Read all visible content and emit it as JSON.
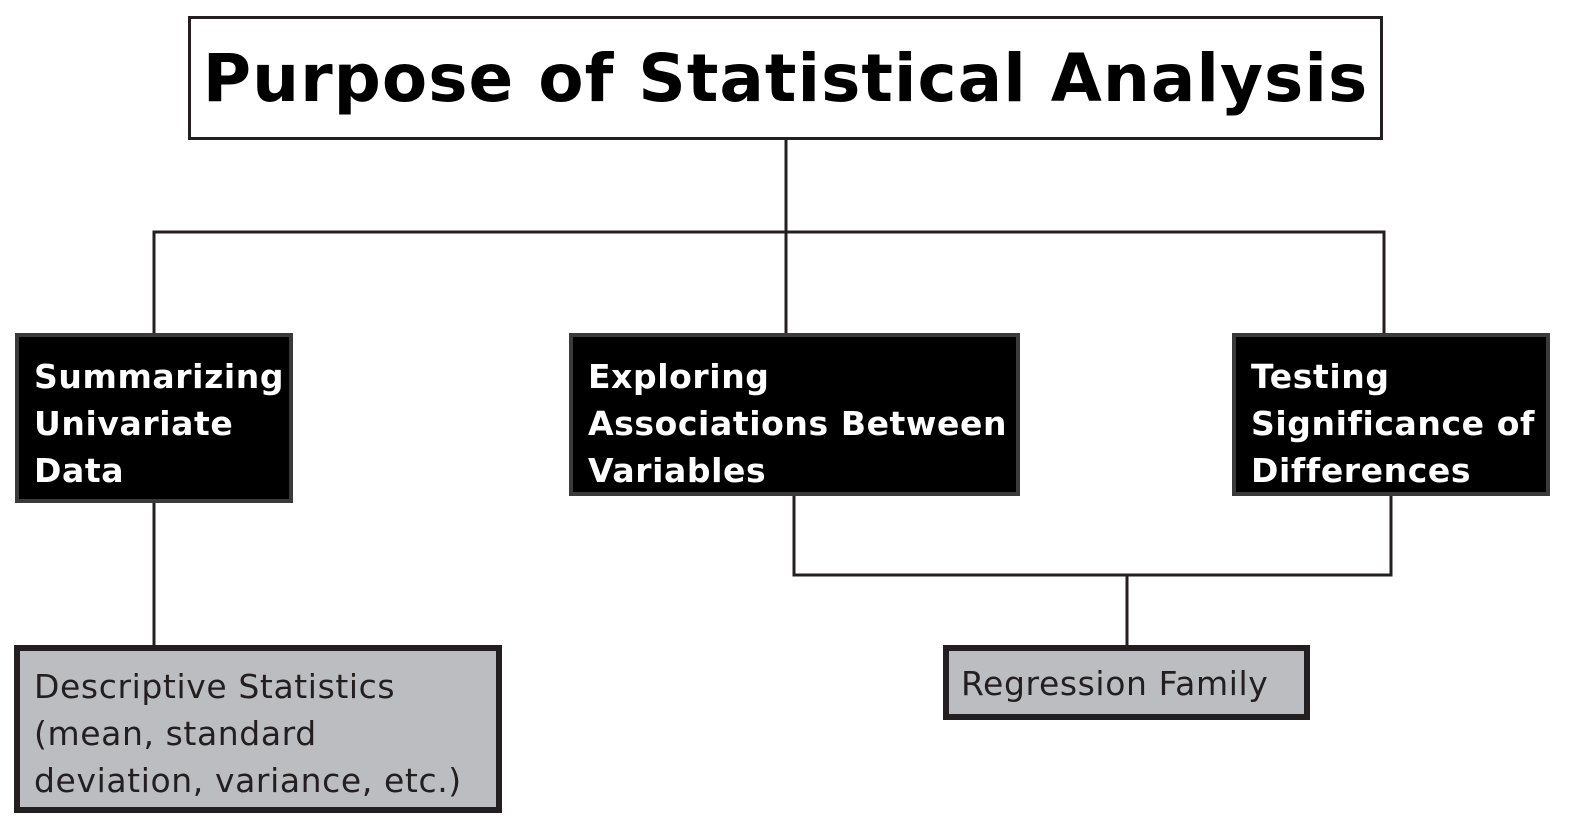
{
  "diagram": {
    "root": {
      "label": "Purpose of Statistical Analysis"
    },
    "purposes": [
      {
        "label": "Summarizing\nUnivariate\nData"
      },
      {
        "label": "Exploring\nAssociations Between\nVariables"
      },
      {
        "label": "Testing\nSignificance of\nDifferences"
      }
    ],
    "methods": [
      {
        "label": "Descriptive Statistics\n(mean, standard\ndeviation, variance, etc.)"
      },
      {
        "label": "Regression Family"
      }
    ]
  },
  "colors": {
    "line": "#231f20",
    "dark_box": "#000000",
    "dark_box_text": "#ffffff",
    "light_box": "#bcbdc0",
    "light_box_text": "#231f20"
  }
}
